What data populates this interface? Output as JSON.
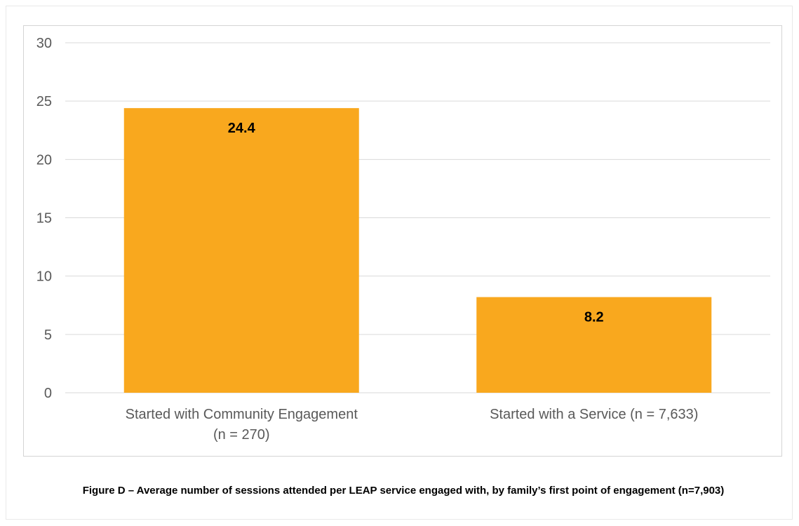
{
  "caption": "Figure D – Average number of sessions attended per LEAP service engaged with, by family’s first point of engagement (n=7,903)",
  "chart_data": {
    "type": "bar",
    "categories": [
      [
        "Started with Community Engagement",
        "(n = 270)"
      ],
      [
        "Started with a Service (n = 7,633)"
      ]
    ],
    "values": [
      24.4,
      8.2
    ],
    "data_labels": [
      "24.4",
      "8.2"
    ],
    "title": "",
    "xlabel": "",
    "ylabel": "",
    "ylim": [
      0,
      30
    ],
    "yticks": [
      0,
      5,
      10,
      15,
      20,
      25,
      30
    ],
    "grid": true,
    "legend": "none",
    "bar_color": "#F9A81E",
    "grid_color": "#d9d9d9",
    "label_color": "#595959"
  }
}
